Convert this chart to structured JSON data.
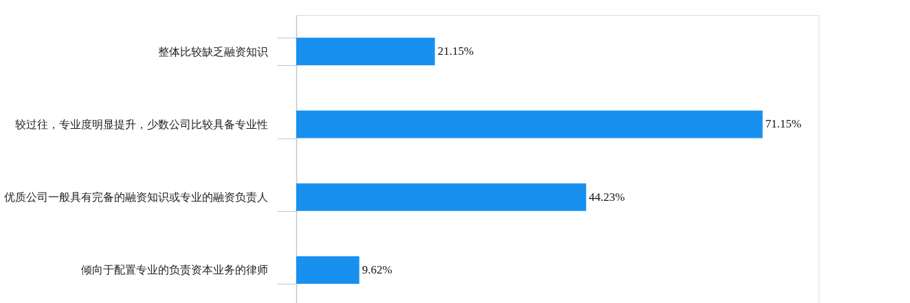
{
  "chart_data": {
    "type": "bar",
    "orientation": "horizontal",
    "categories": [
      "整体比较缺乏融资知识",
      "较过往，专业度明显提升，少数公司比较具备专业性",
      "优质公司一般具有完备的融资知识或专业的融资负责人",
      "倾向于配置专业的负责资本业务的律师"
    ],
    "values": [
      21.15,
      71.15,
      44.23,
      9.62
    ],
    "value_labels": [
      "21.15%",
      "71.15%",
      "44.23%",
      "9.62%"
    ],
    "color": "#1890f0",
    "grid": false
  }
}
